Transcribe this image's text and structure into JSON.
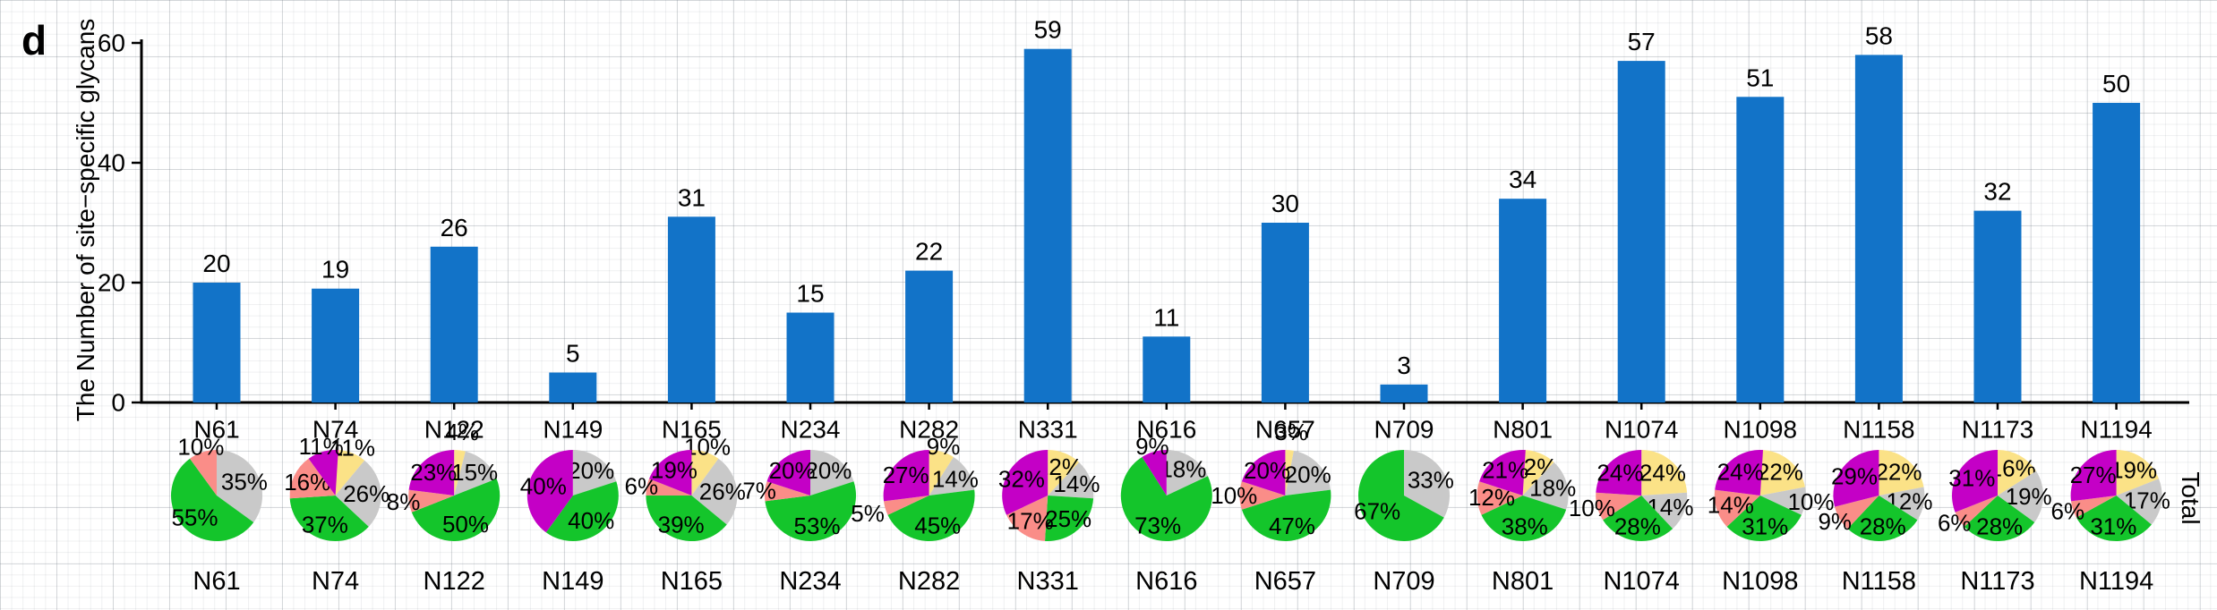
{
  "figure": {
    "panel_label": "d",
    "row_label_right": "Total"
  },
  "colors": {
    "bar": "#1273C8",
    "green": "#14C52B",
    "salmon": "#FA8D88",
    "gray": "#C9C9C9",
    "magenta": "#C400C6",
    "yellow": "#FBE287"
  },
  "chart_data": [
    {
      "type": "bar",
      "title": "",
      "ylabel": "The Number of site−specific glycans",
      "xlabel": "",
      "categories": [
        "N61",
        "N74",
        "N122",
        "N149",
        "N165",
        "N234",
        "N282",
        "N331",
        "N616",
        "N657",
        "N709",
        "N801",
        "N1074",
        "N1098",
        "N1158",
        "N1173",
        "N1194"
      ],
      "values": [
        20,
        19,
        26,
        5,
        31,
        15,
        22,
        59,
        11,
        30,
        3,
        34,
        57,
        51,
        58,
        32,
        50
      ],
      "yticks": [
        0,
        20,
        40,
        60
      ],
      "ylim": [
        0,
        62
      ],
      "grid": true,
      "legend_position": "none",
      "bar_color_key": "bar"
    },
    {
      "type": "pie",
      "row_label": "Total",
      "slice_order_clockwise_from_top": [
        "yellow",
        "gray",
        "green",
        "salmon",
        "magenta"
      ],
      "pies": [
        {
          "site": "N61",
          "slices": [
            {
              "color": "gray",
              "pct": 35
            },
            {
              "color": "green",
              "pct": 55
            },
            {
              "color": "salmon",
              "pct": 10
            }
          ]
        },
        {
          "site": "N74",
          "slices": [
            {
              "color": "yellow",
              "pct": 11
            },
            {
              "color": "gray",
              "pct": 26
            },
            {
              "color": "green",
              "pct": 37
            },
            {
              "color": "salmon",
              "pct": 16
            },
            {
              "color": "magenta",
              "pct": 11
            }
          ]
        },
        {
          "site": "N122",
          "slices": [
            {
              "color": "yellow",
              "pct": 4
            },
            {
              "color": "gray",
              "pct": 15
            },
            {
              "color": "green",
              "pct": 50
            },
            {
              "color": "salmon",
              "pct": 8
            },
            {
              "color": "magenta",
              "pct": 23
            }
          ]
        },
        {
          "site": "N149",
          "slices": [
            {
              "color": "gray",
              "pct": 20
            },
            {
              "color": "green",
              "pct": 40
            },
            {
              "color": "magenta",
              "pct": 40
            }
          ]
        },
        {
          "site": "N165",
          "slices": [
            {
              "color": "yellow",
              "pct": 10
            },
            {
              "color": "gray",
              "pct": 26
            },
            {
              "color": "green",
              "pct": 39
            },
            {
              "color": "salmon",
              "pct": 6
            },
            {
              "color": "magenta",
              "pct": 19
            }
          ]
        },
        {
          "site": "N234",
          "slices": [
            {
              "color": "gray",
              "pct": 20
            },
            {
              "color": "green",
              "pct": 53
            },
            {
              "color": "salmon",
              "pct": 7
            },
            {
              "color": "magenta",
              "pct": 20
            }
          ]
        },
        {
          "site": "N282",
          "slices": [
            {
              "color": "yellow",
              "pct": 9
            },
            {
              "color": "gray",
              "pct": 14
            },
            {
              "color": "green",
              "pct": 45
            },
            {
              "color": "salmon",
              "pct": 5
            },
            {
              "color": "magenta",
              "pct": 27
            }
          ]
        },
        {
          "site": "N331",
          "slices": [
            {
              "color": "yellow",
              "pct": 12
            },
            {
              "color": "gray",
              "pct": 14
            },
            {
              "color": "green",
              "pct": 25
            },
            {
              "color": "salmon",
              "pct": 17
            },
            {
              "color": "magenta",
              "pct": 32
            }
          ]
        },
        {
          "site": "N616",
          "slices": [
            {
              "color": "gray",
              "pct": 18
            },
            {
              "color": "green",
              "pct": 73
            },
            {
              "color": "magenta",
              "pct": 9
            }
          ]
        },
        {
          "site": "N657",
          "slices": [
            {
              "color": "yellow",
              "pct": 3
            },
            {
              "color": "gray",
              "pct": 20
            },
            {
              "color": "green",
              "pct": 47
            },
            {
              "color": "salmon",
              "pct": 10
            },
            {
              "color": "magenta",
              "pct": 20
            }
          ]
        },
        {
          "site": "N709",
          "slices": [
            {
              "color": "gray",
              "pct": 33
            },
            {
              "color": "green",
              "pct": 67
            }
          ]
        },
        {
          "site": "N801",
          "slices": [
            {
              "color": "yellow",
              "pct": 12
            },
            {
              "color": "gray",
              "pct": 18
            },
            {
              "color": "green",
              "pct": 38
            },
            {
              "color": "salmon",
              "pct": 12
            },
            {
              "color": "magenta",
              "pct": 21
            }
          ]
        },
        {
          "site": "N1074",
          "slices": [
            {
              "color": "yellow",
              "pct": 24
            },
            {
              "color": "gray",
              "pct": 14
            },
            {
              "color": "green",
              "pct": 28
            },
            {
              "color": "salmon",
              "pct": 10
            },
            {
              "color": "magenta",
              "pct": 24
            }
          ]
        },
        {
          "site": "N1098",
          "slices": [
            {
              "color": "yellow",
              "pct": 22
            },
            {
              "color": "gray",
              "pct": 10
            },
            {
              "color": "green",
              "pct": 31
            },
            {
              "color": "salmon",
              "pct": 14
            },
            {
              "color": "magenta",
              "pct": 24
            }
          ]
        },
        {
          "site": "N1158",
          "slices": [
            {
              "color": "yellow",
              "pct": 22
            },
            {
              "color": "gray",
              "pct": 12
            },
            {
              "color": "green",
              "pct": 28
            },
            {
              "color": "salmon",
              "pct": 9
            },
            {
              "color": "magenta",
              "pct": 29
            }
          ]
        },
        {
          "site": "N1173",
          "slices": [
            {
              "color": "yellow",
              "pct": 16
            },
            {
              "color": "gray",
              "pct": 19
            },
            {
              "color": "green",
              "pct": 28
            },
            {
              "color": "salmon",
              "pct": 6
            },
            {
              "color": "magenta",
              "pct": 31
            }
          ]
        },
        {
          "site": "N1194",
          "slices": [
            {
              "color": "yellow",
              "pct": 19
            },
            {
              "color": "gray",
              "pct": 17
            },
            {
              "color": "green",
              "pct": 31
            },
            {
              "color": "salmon",
              "pct": 6
            },
            {
              "color": "magenta",
              "pct": 27
            }
          ]
        }
      ]
    }
  ]
}
